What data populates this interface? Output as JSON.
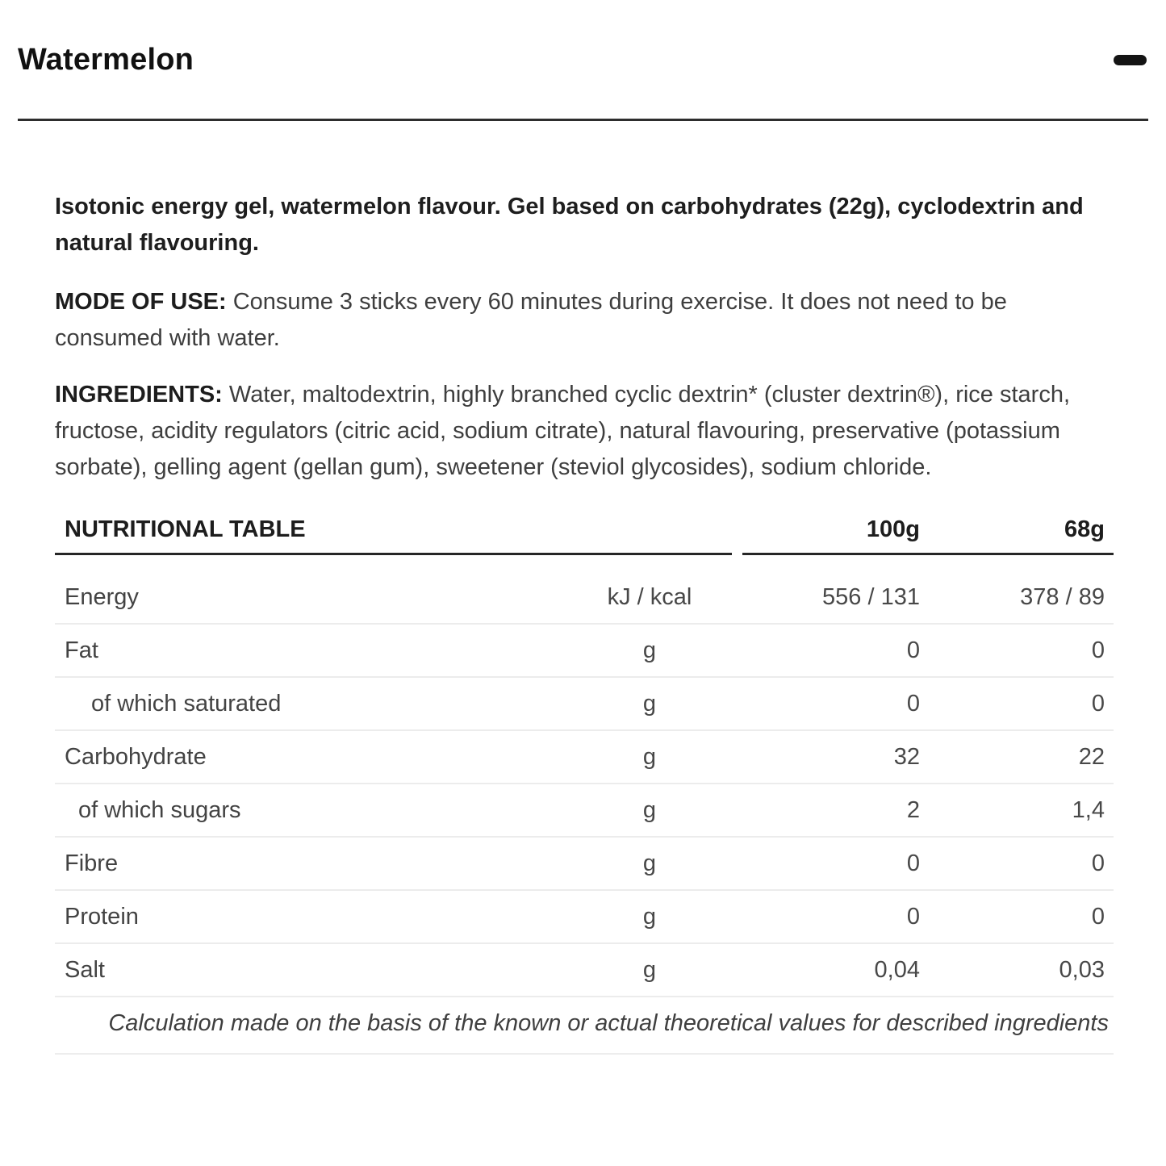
{
  "accordion": {
    "title": "Watermelon",
    "state": "expanded",
    "collapse_icon": "minus-icon"
  },
  "description": "Isotonic energy gel, watermelon flavour. Gel based on carbohydrates (22g), cyclodextrin and natural flavouring.",
  "mode_of_use": {
    "label": "MODE OF USE:",
    "text": " Consume 3 sticks every 60 minutes during exercise. It does not need to be consumed with water."
  },
  "ingredients": {
    "label": "INGREDIENTS:",
    "text": " Water, maltodextrin, highly branched cyclic dextrin* (cluster dextrin®), rice starch, fructose, acidity regulators (citric acid, sodium citrate), natural flavouring, preservative (potassium sorbate), gelling agent (gellan gum), sweetener (steviol glycosides), sodium chloride."
  },
  "nutrition_table": {
    "title": "NUTRITIONAL TABLE",
    "columns": {
      "per_100g": "100g",
      "per_68g": "68g"
    },
    "rows": [
      {
        "name": "Energy",
        "unit": "kJ / kcal",
        "per100": "556 / 131",
        "per68": "378 / 89",
        "indent": 0
      },
      {
        "name": "Fat",
        "unit": "g",
        "per100": "0",
        "per68": "0",
        "indent": 0
      },
      {
        "name": "of which saturated",
        "unit": "g",
        "per100": "0",
        "per68": "0",
        "indent": 2
      },
      {
        "name": "Carbohydrate",
        "unit": "g",
        "per100": "32",
        "per68": "22",
        "indent": 0
      },
      {
        "name": "of which sugars",
        "unit": "g",
        "per100": "2",
        "per68": "1,4",
        "indent": 1
      },
      {
        "name": "Fibre",
        "unit": "g",
        "per100": "0",
        "per68": "0",
        "indent": 0
      },
      {
        "name": "Protein",
        "unit": "g",
        "per100": "0",
        "per68": "0",
        "indent": 0
      },
      {
        "name": "Salt",
        "unit": "g",
        "per100": "0,04",
        "per68": "0,03",
        "indent": 0
      }
    ],
    "footnote": "Calculation made on the basis of the known or actual theoretical values for described ingredients"
  },
  "colors": {
    "title_text": "#111111",
    "bold_text": "#1d1d1d",
    "body_text": "#3e3e3e",
    "table_text": "#484848",
    "divider_dark": "#2d2d2d",
    "row_separator": "#ececec",
    "background": "#ffffff"
  }
}
